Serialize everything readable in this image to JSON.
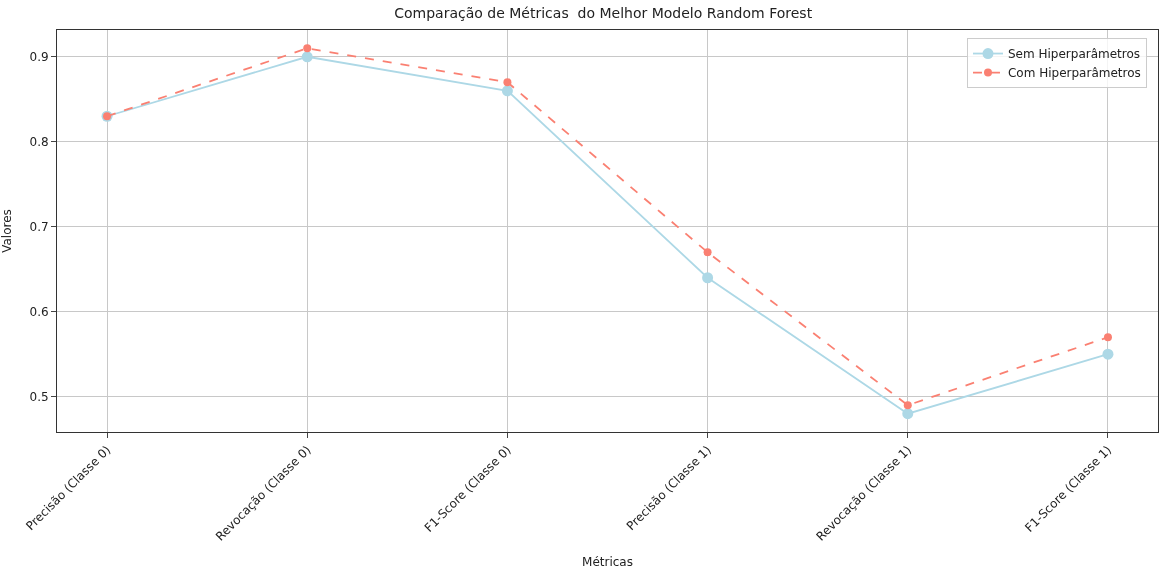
{
  "chart_data": {
    "type": "line",
    "title": "Comparação de Métricas  do Melhor Modelo Random Forest",
    "xlabel": "Métricas",
    "ylabel": "Valores",
    "categories": [
      "Precisão (Classe 0)",
      "Revocação (Classe 0)",
      "F1-Score (Classe 0)",
      "Precisão (Classe 1)",
      "Revocação (Classe 1)",
      "F1-Score (Classe 1)"
    ],
    "series": [
      {
        "name": "Sem Hiperparâmetros",
        "color": "#add8e6",
        "line_style": "solid",
        "values": [
          0.83,
          0.9,
          0.86,
          0.64,
          0.48,
          0.55
        ]
      },
      {
        "name": "Com Hiperparâmetros",
        "color": "#fa8072",
        "line_style": "dashed",
        "values": [
          0.83,
          0.91,
          0.87,
          0.67,
          0.49,
          0.57
        ]
      }
    ],
    "ylim": [
      0.4585,
      0.9315
    ],
    "yticks": [
      0.5,
      0.6,
      0.7,
      0.8,
      0.9
    ],
    "grid": true,
    "legend": "top right",
    "marker": "circle"
  }
}
